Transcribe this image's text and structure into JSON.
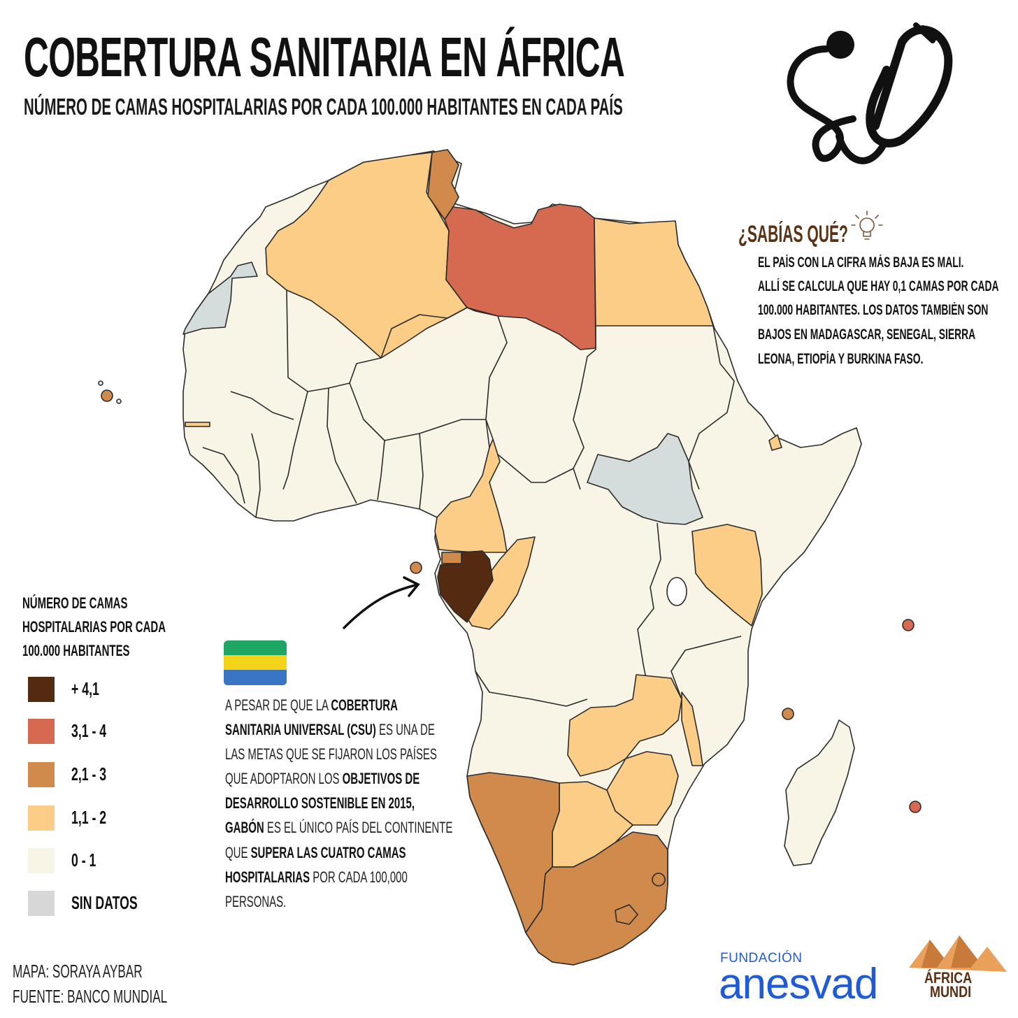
{
  "title": "COBERTURA SANITARIA EN ÁFRICA",
  "subtitle": "NÚMERO DE CAMAS HOSPITALARIAS POR CADA 100.000 HABITANTES EN CADA PAÍS",
  "icons": {
    "stethoscope": "stethoscope-icon",
    "bulb": "lightbulb-icon",
    "flag": "gabon-flag"
  },
  "fact": {
    "title": "¿SABÍAS QUÉ?",
    "lines": [
      "EL PAÍS CON LA CIFRA MÁS BAJA ES MALI.",
      "ALLÍ SE CALCULA QUE HAY 0,1 CAMAS POR CADA",
      "100.000 HABITANTES. LOS DATOS TAMBIÉN SON",
      "BAJOS EN MADAGASCAR, SENEGAL, SIERRA",
      "LEONA, ETIOPÍA Y BURKINA FASO."
    ]
  },
  "legend": {
    "title_lines": [
      "NÚMERO DE CAMAS",
      "HOSPITALARIAS POR CADA",
      "100.000 HABITANTES"
    ],
    "items": [
      {
        "label": "+ 4,1",
        "color": "#542a10"
      },
      {
        "label": "3,1 - 4",
        "color": "#d66a50"
      },
      {
        "label": "2,1 - 3",
        "color": "#cf8a4c"
      },
      {
        "label": "1,1 - 2",
        "color": "#fbcd86"
      },
      {
        "label": "0 - 1",
        "color": "#f8f5e6"
      },
      {
        "label": "SIN DATOS",
        "color": "#d7d7d7"
      }
    ]
  },
  "map_colors": {
    "nodata": "#d5dcdc",
    "low": "#f8f5e6",
    "mid": "#fbcd86",
    "upper": "#cf8a4c",
    "high": "#d66a50",
    "top": "#542a10"
  },
  "body": {
    "l1a": "A PESAR DE QUE LA ",
    "l1b": "COBERTURA",
    "l2a": "SANITARIA UNIVERSAL (CSU)",
    "l2b": " ES UNA DE",
    "l3": "LAS METAS QUE SE FIJARON LOS PAÍSES",
    "l4a": "QUE ADOPTARON LOS ",
    "l4b": "OBJETIVOS DE",
    "l5": "DESARROLLO SOSTENIBLE EN 2015,",
    "l6a": "GABÓN",
    "l6b": " ES EL ÚNICO PAÍS DEL CONTINENTE",
    "l7a": "QUE ",
    "l7b": "SUPERA LAS CUATRO CAMAS",
    "l8a": "HOSPITALARIAS",
    "l8b": " POR CADA 100,000",
    "l9": "PERSONAS."
  },
  "credits": {
    "map": "MAPA: SORAYA AYBAR",
    "source": "FUENTE: BANCO MUNDIAL"
  },
  "logos": {
    "anesvad_small": "FUNDACIÓN",
    "anesvad_big": "anesvad",
    "africa_1": "ÁFRICA",
    "africa_2": "MUNDI",
    "anesvad_color": "#1f5bd6",
    "africa_color": "#5a2e12"
  }
}
